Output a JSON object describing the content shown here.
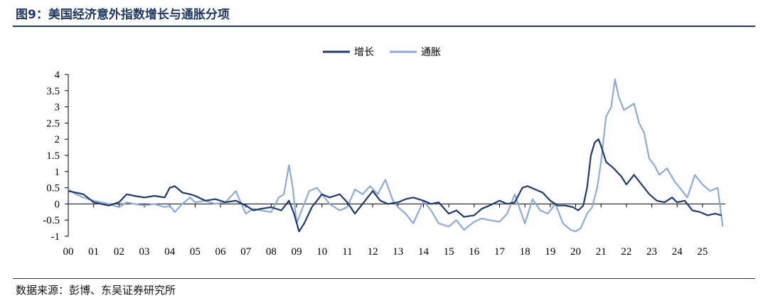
{
  "title": "图9：美国经济意外指数增长与通胀分项",
  "source": "数据来源：彭博、东吴证券研究所",
  "chart_data": {
    "type": "line",
    "x_tick_labels": [
      "00",
      "01",
      "02",
      "03",
      "04",
      "05",
      "06",
      "07",
      "08",
      "09",
      "10",
      "11",
      "12",
      "13",
      "14",
      "15",
      "16",
      "17",
      "18",
      "19",
      "20",
      "21",
      "22",
      "23",
      "24",
      "25"
    ],
    "y_tick_labels": [
      "4",
      "3.5",
      "3",
      "2.5",
      "2",
      "1.5",
      "1",
      "0.5",
      "0",
      "-0.5",
      "-1"
    ],
    "ylim": [
      -1,
      4
    ],
    "xlim": [
      2000,
      2025.9
    ],
    "legend_position": "top-center",
    "grid": false,
    "series": [
      {
        "name": "增长",
        "color": "#1f3b6e",
        "x": [
          2000.0,
          2000.3,
          2000.6,
          2001.0,
          2001.3,
          2001.6,
          2002.0,
          2002.3,
          2002.6,
          2003.0,
          2003.4,
          2003.8,
          2004.0,
          2004.2,
          2004.5,
          2004.8,
          2005.0,
          2005.4,
          2005.8,
          2006.2,
          2006.6,
          2007.0,
          2007.3,
          2007.6,
          2008.0,
          2008.4,
          2008.7,
          2008.9,
          2009.1,
          2009.3,
          2009.6,
          2010.0,
          2010.3,
          2010.7,
          2011.0,
          2011.3,
          2011.7,
          2012.0,
          2012.3,
          2012.6,
          2013.0,
          2013.3,
          2013.6,
          2014.0,
          2014.3,
          2014.6,
          2015.0,
          2015.3,
          2015.6,
          2016.0,
          2016.3,
          2016.6,
          2017.0,
          2017.3,
          2017.6,
          2017.9,
          2018.1,
          2018.4,
          2018.7,
          2019.0,
          2019.3,
          2019.6,
          2019.9,
          2020.1,
          2020.3,
          2020.45,
          2020.6,
          2020.75,
          2020.9,
          2021.0,
          2021.2,
          2021.5,
          2021.8,
          2022.0,
          2022.3,
          2022.6,
          2022.9,
          2023.2,
          2023.5,
          2023.8,
          2024.0,
          2024.3,
          2024.6,
          2024.9,
          2025.2,
          2025.5,
          2025.75
        ],
        "y": [
          0.4,
          0.35,
          0.3,
          0.05,
          0.0,
          -0.05,
          0.05,
          0.3,
          0.25,
          0.2,
          0.25,
          0.2,
          0.5,
          0.55,
          0.35,
          0.3,
          0.25,
          0.1,
          0.15,
          0.05,
          0.1,
          -0.05,
          -0.2,
          -0.15,
          -0.1,
          -0.2,
          0.1,
          -0.3,
          -0.85,
          -0.6,
          -0.1,
          0.3,
          0.2,
          0.3,
          0.05,
          -0.3,
          0.1,
          0.4,
          0.1,
          0.0,
          0.05,
          0.15,
          0.2,
          0.1,
          0.0,
          0.05,
          -0.3,
          -0.2,
          -0.4,
          -0.35,
          -0.15,
          -0.05,
          0.1,
          0.0,
          0.05,
          0.5,
          0.55,
          0.45,
          0.35,
          0.1,
          -0.05,
          -0.05,
          -0.1,
          -0.2,
          -0.05,
          0.5,
          1.5,
          1.9,
          2.0,
          1.8,
          1.3,
          1.1,
          0.85,
          0.6,
          0.9,
          0.6,
          0.3,
          0.1,
          0.05,
          0.2,
          0.05,
          0.1,
          -0.2,
          -0.25,
          -0.35,
          -0.3,
          -0.35
        ]
      },
      {
        "name": "通胀",
        "color": "#8eaadb",
        "x": [
          2000.0,
          2000.3,
          2000.6,
          2001.0,
          2001.3,
          2001.6,
          2002.0,
          2002.3,
          2002.6,
          2003.0,
          2003.4,
          2003.8,
          2004.0,
          2004.2,
          2004.5,
          2004.8,
          2005.0,
          2005.4,
          2005.8,
          2006.2,
          2006.6,
          2007.0,
          2007.3,
          2007.6,
          2008.0,
          2008.3,
          2008.5,
          2008.7,
          2008.85,
          2009.0,
          2009.2,
          2009.5,
          2009.8,
          2010.0,
          2010.3,
          2010.7,
          2011.0,
          2011.3,
          2011.6,
          2011.9,
          2012.2,
          2012.5,
          2012.8,
          2013.0,
          2013.3,
          2013.6,
          2014.0,
          2014.3,
          2014.6,
          2015.0,
          2015.3,
          2015.6,
          2016.0,
          2016.3,
          2016.6,
          2017.0,
          2017.3,
          2017.6,
          2018.0,
          2018.3,
          2018.6,
          2018.9,
          2019.2,
          2019.5,
          2019.8,
          2020.0,
          2020.2,
          2020.45,
          2020.65,
          2020.85,
          2021.0,
          2021.2,
          2021.4,
          2021.55,
          2021.7,
          2021.9,
          2022.1,
          2022.3,
          2022.5,
          2022.7,
          2022.9,
          2023.1,
          2023.3,
          2023.6,
          2023.9,
          2024.1,
          2024.4,
          2024.7,
          2025.0,
          2025.3,
          2025.6,
          2025.8
        ],
        "y": [
          0.45,
          0.3,
          0.2,
          0.1,
          0.05,
          0.0,
          -0.1,
          0.05,
          0.0,
          -0.05,
          0.0,
          -0.1,
          -0.05,
          -0.25,
          0.0,
          0.2,
          0.05,
          0.1,
          0.0,
          0.05,
          0.4,
          -0.3,
          -0.15,
          -0.2,
          -0.25,
          0.2,
          0.3,
          1.2,
          0.5,
          -0.6,
          -0.2,
          0.4,
          0.5,
          0.3,
          0.0,
          -0.2,
          -0.1,
          0.45,
          0.3,
          0.55,
          0.3,
          0.75,
          0.1,
          -0.1,
          -0.3,
          -0.6,
          0.1,
          -0.2,
          -0.6,
          -0.7,
          -0.5,
          -0.8,
          -0.55,
          -0.45,
          -0.5,
          -0.55,
          -0.3,
          0.3,
          -0.6,
          0.15,
          -0.2,
          -0.3,
          0.0,
          -0.6,
          -0.8,
          -0.85,
          -0.75,
          -0.3,
          -0.1,
          0.5,
          1.3,
          2.7,
          3.0,
          3.85,
          3.3,
          2.9,
          3.0,
          3.1,
          2.5,
          2.2,
          1.4,
          1.2,
          0.9,
          1.1,
          0.7,
          0.5,
          0.2,
          0.9,
          0.6,
          0.4,
          0.5,
          -0.7
        ]
      }
    ]
  }
}
